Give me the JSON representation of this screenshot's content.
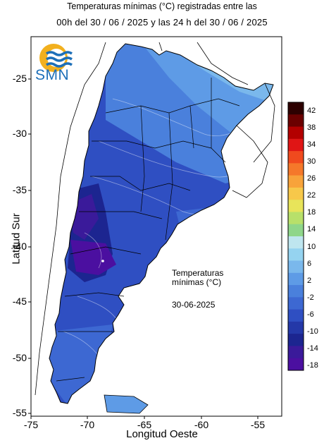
{
  "header": {
    "title_line1": "Temperaturas mínimas (°C) registradas entre las",
    "title_line2": "00h del 30 / 06 / 2025 y las 24 h del 30 / 06 / 2025"
  },
  "logo": {
    "text": "SMN",
    "colors": {
      "sun": "#f2b01e",
      "waves": "#1d6fb8"
    }
  },
  "axes": {
    "ylabel": "Latitud Sur",
    "xlabel": "Longitud Oeste",
    "yticks": [
      "-25",
      "-30",
      "-35",
      "-40",
      "-45",
      "-50",
      "-55"
    ],
    "xticks": [
      "-75",
      "-70",
      "-65",
      "-60",
      "-55"
    ]
  },
  "annotation": {
    "line1": "Temperaturas",
    "line2": "mínimas (°C)",
    "date": "30-06-2025"
  },
  "legend": {
    "labels": [
      "42",
      "38",
      "34",
      "30",
      "26",
      "22",
      "18",
      "14",
      "10",
      "6",
      "2",
      "-2",
      "-6",
      "-10",
      "-14",
      "-18"
    ],
    "colors": [
      "#2d0000",
      "#6b0000",
      "#b30000",
      "#e01515",
      "#f04a1e",
      "#f5782a",
      "#f8a33a",
      "#f7c84a",
      "#e8e45a",
      "#b8e06a",
      "#8fd68a",
      "#bfe6ef",
      "#95d3f0",
      "#7ab8ec",
      "#5e9be6",
      "#4a80dc",
      "#3d68d2",
      "#2f4fc2",
      "#2438a8",
      "#1c2590",
      "#3a1a9a",
      "#4b0fa0"
    ]
  }
}
